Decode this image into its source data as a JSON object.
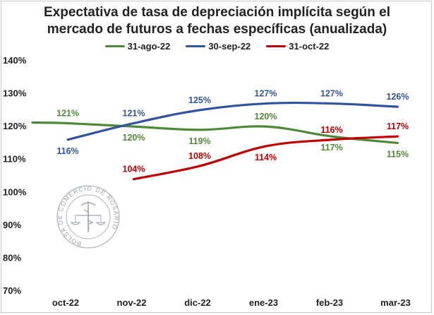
{
  "chart_data": {
    "type": "line",
    "title_line1": "Expectativa de tasa de depreciación implícita según el",
    "title_line2": "mercado de futuros a fechas específicas (anualizada)",
    "categories": [
      "oct-22",
      "nov-22",
      "dic-22",
      "ene-23",
      "feb-23",
      "mar-23"
    ],
    "y_tick_labels": [
      "70%",
      "80%",
      "90%",
      "100%",
      "110%",
      "120%",
      "130%",
      "140%"
    ],
    "ylim": [
      70,
      140
    ],
    "grid": false,
    "legend_position": "top-center",
    "series": [
      {
        "name": "31-ago-22",
        "color": "#4e8a36",
        "values": [
          121,
          120,
          119,
          120,
          117,
          115
        ],
        "labels": [
          "121%",
          "120%",
          "119%",
          "120%",
          "117%",
          "115%"
        ]
      },
      {
        "name": "30-sep-22",
        "color": "#2f559f",
        "values": [
          116,
          121,
          125,
          127,
          127,
          126
        ],
        "labels": [
          "116%",
          "121%",
          "125%",
          "127%",
          "127%",
          "126%"
        ]
      },
      {
        "name": "31-oct-22",
        "color": "#c00000",
        "values": [
          null,
          104,
          108,
          114,
          116,
          117
        ],
        "labels": [
          "",
          "104%",
          "108%",
          "114%",
          "116%",
          "117%"
        ]
      }
    ]
  },
  "watermark": {
    "text": "BOLSA DE COMERCIO DE ROSARIO",
    "icon": "caduceus-scales-icon"
  }
}
